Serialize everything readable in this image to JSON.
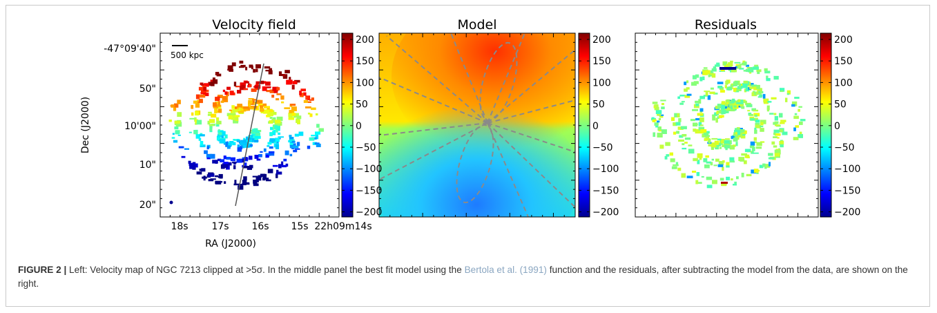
{
  "figure": {
    "panels": [
      {
        "title": "Velocity field"
      },
      {
        "title": "Model"
      },
      {
        "title": "Residuals"
      }
    ],
    "axes": {
      "ylabel": "Dec (J2000)",
      "xlabel": "RA (J2000)",
      "yticks": [
        "-47°09'40\"",
        "50\"",
        "10'00\"",
        "10\"",
        "20\""
      ],
      "xticks": [
        "18s",
        "17s",
        "16s",
        "15s",
        "22h09m14s"
      ]
    },
    "colorbar_ticks": [
      "200",
      "150",
      "100",
      "50",
      "0",
      "−50",
      "−100",
      "−150",
      "−200"
    ],
    "scalebar_label": "500 kpc",
    "colors": {
      "high": "#b40000",
      "mid": "#7fff7f",
      "low": "#00008f",
      "dashed": "#888888"
    }
  },
  "caption": {
    "label": "FIGURE 2 |",
    "text_1": " Left: Velocity map of NGC 7213 clipped at >5σ. In the middle panel the best fit model using the ",
    "link": "Bertola et al. (1991)",
    "text_2": " function and the residuals, after subtracting the model from the data, are shown on the right."
  }
}
